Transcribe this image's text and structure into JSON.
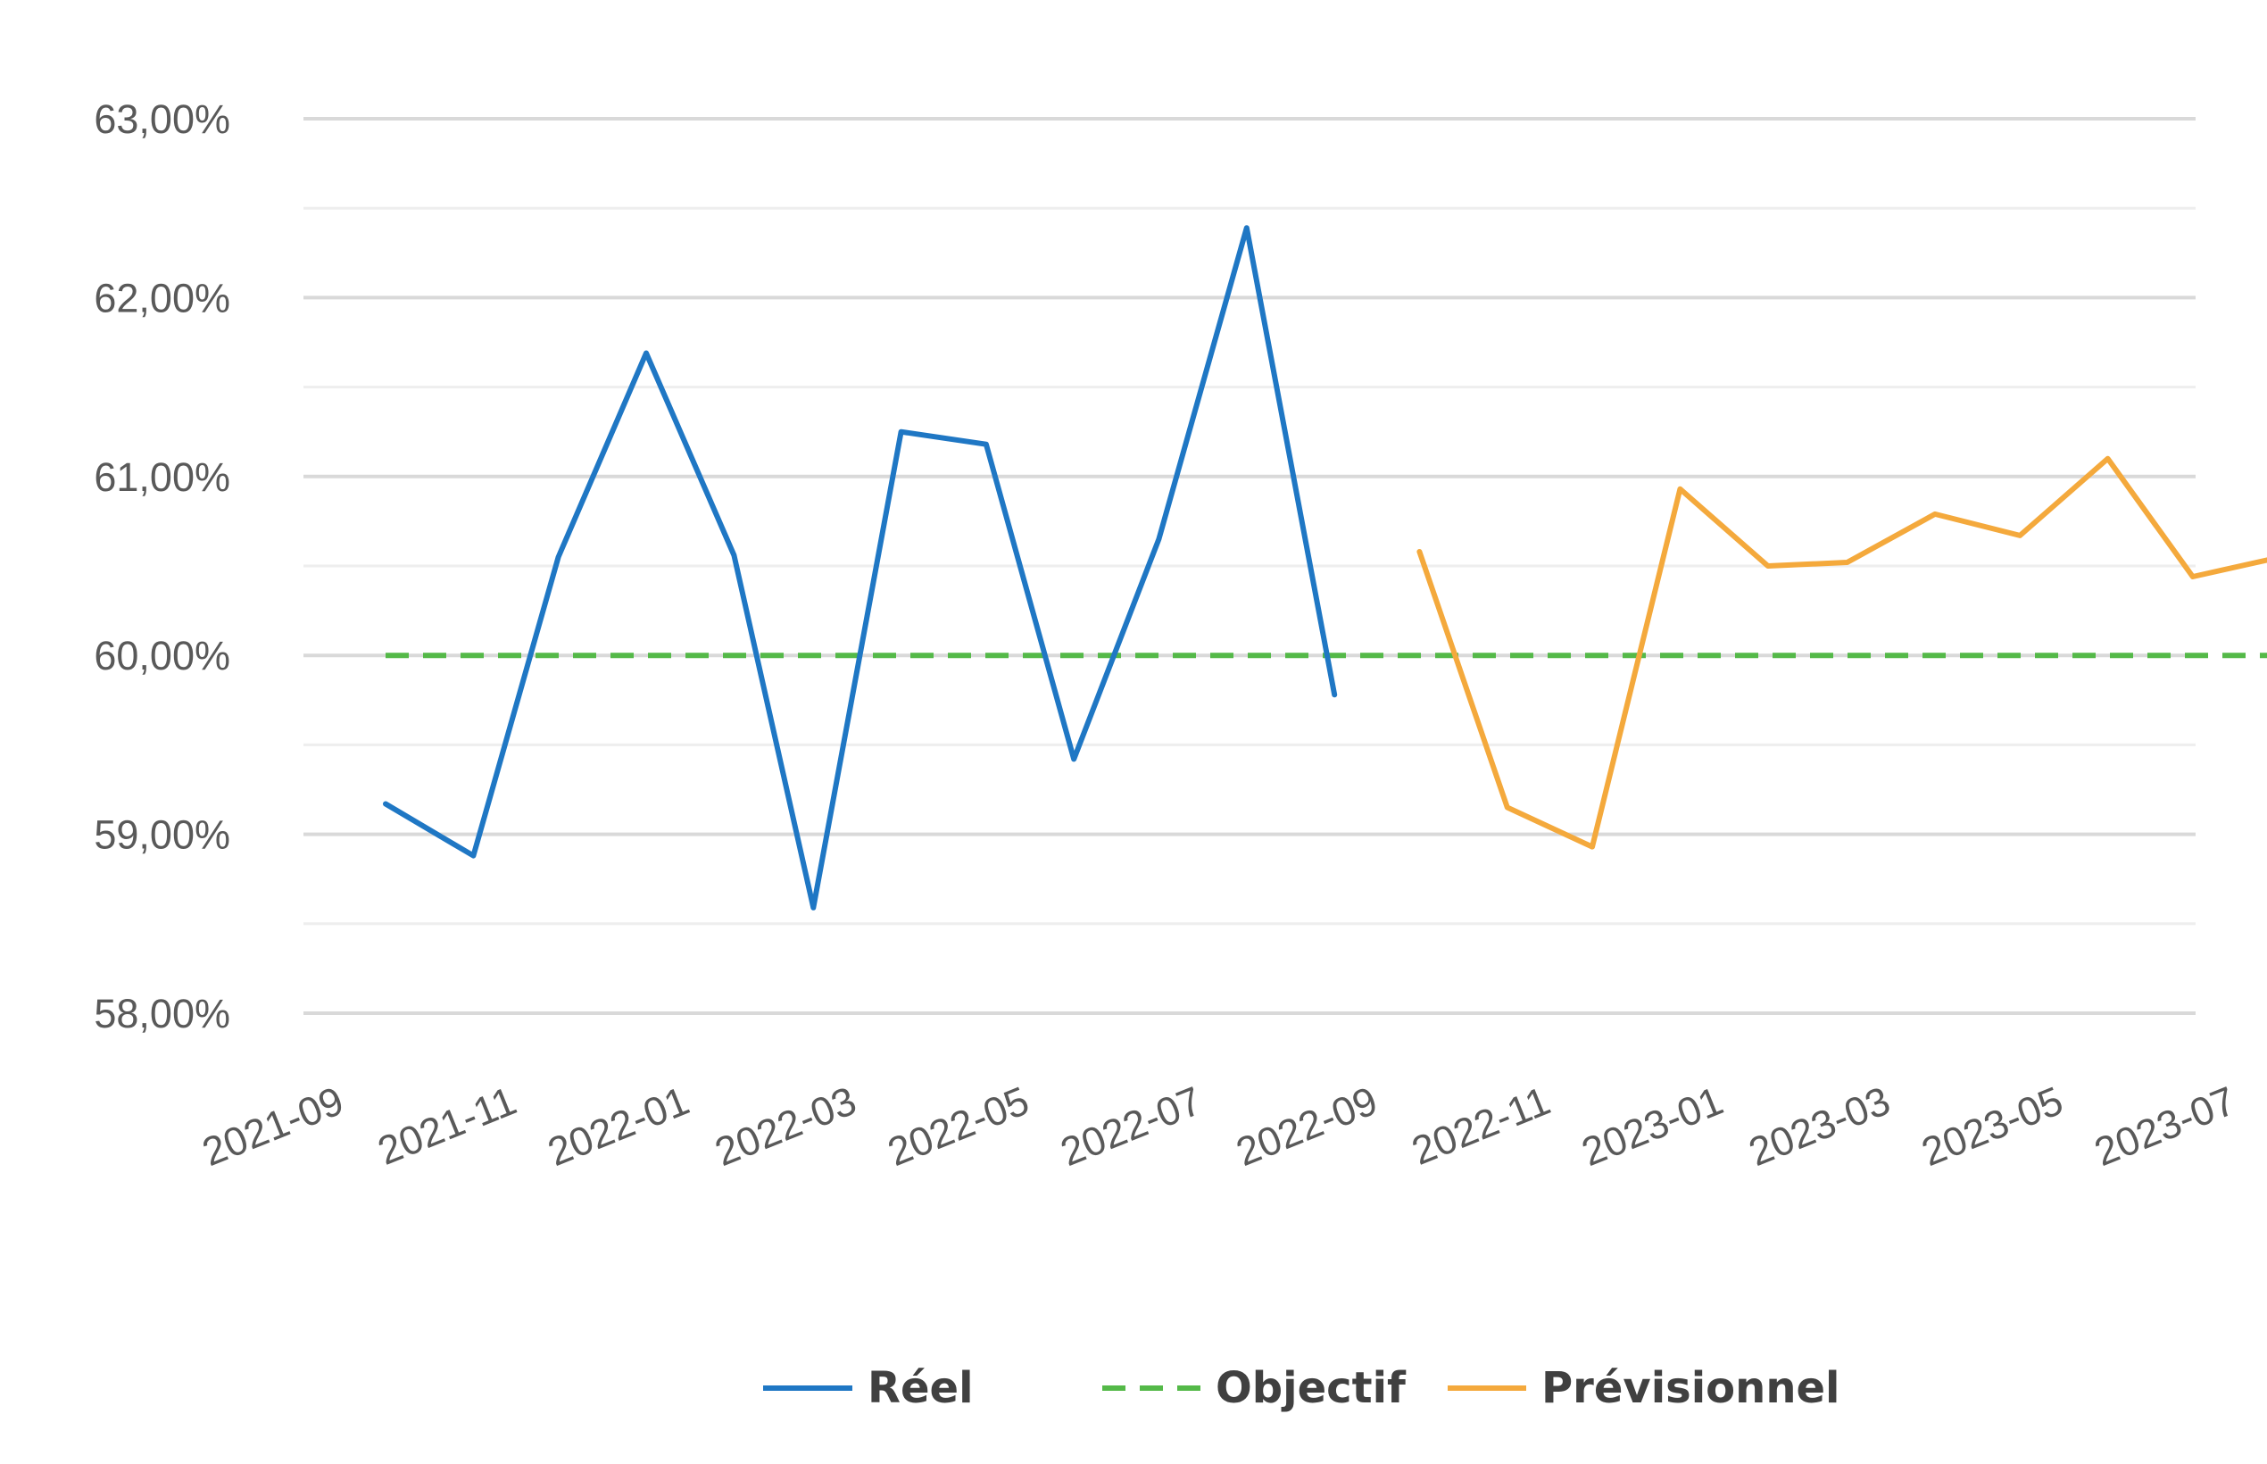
{
  "chart_data": {
    "type": "line",
    "y_tick_labels": [
      "63,00%",
      "62,00%",
      "61,00%",
      "60,00%",
      "59,00%",
      "58,00%"
    ],
    "y_ticks": [
      63,
      62,
      61,
      60,
      59,
      58
    ],
    "ylim": [
      58,
      63
    ],
    "x_tick_labels": [
      "2021-09",
      "2021-11",
      "2022-01",
      "2022-03",
      "2022-05",
      "2022-07",
      "2022-09",
      "2022-11",
      "2023-01",
      "2023-03",
      "2023-05",
      "2023-07"
    ],
    "x_ticks": [
      "2021-09-01",
      "2021-11-01",
      "2022-01-01",
      "2022-03-01",
      "2022-05-01",
      "2022-07-01",
      "2022-09-01",
      "2022-11-01",
      "2023-01-01",
      "2023-03-01",
      "2023-05-01",
      "2023-07-01"
    ],
    "xlim": [
      "2021-09-01",
      "2023-07-01"
    ],
    "grid": true,
    "legend_position": "bottom",
    "series": [
      {
        "name": "Réel",
        "color": "#1f77c4",
        "dash": "solid",
        "x": [
          "2021-09-30",
          "2021-10-31",
          "2021-11-30",
          "2021-12-31",
          "2022-01-31",
          "2022-02-28",
          "2022-03-31",
          "2022-04-30",
          "2022-05-31",
          "2022-06-30",
          "2022-07-31",
          "2022-08-31"
        ],
        "y": [
          59.17,
          58.88,
          60.55,
          61.69,
          60.56,
          58.59,
          61.25,
          61.18,
          59.42,
          60.65,
          62.39,
          59.78
        ]
      },
      {
        "name": "Objectif",
        "color": "#54b948",
        "dash": "dashed",
        "x": [
          "2021-09-30",
          "2023-07-31"
        ],
        "y": [
          60.0,
          60.0
        ]
      },
      {
        "name": "Prévisionnel",
        "color": "#f4a93c",
        "dash": "solid",
        "x": [
          "2022-09-30",
          "2022-10-31",
          "2022-11-30",
          "2022-12-31",
          "2023-01-31",
          "2023-02-28",
          "2023-03-31",
          "2023-04-30",
          "2023-05-31",
          "2023-06-30",
          "2023-07-31"
        ],
        "y": [
          60.58,
          59.15,
          58.93,
          60.93,
          60.5,
          60.52,
          60.79,
          60.67,
          61.1,
          60.44,
          60.55
        ]
      }
    ]
  }
}
